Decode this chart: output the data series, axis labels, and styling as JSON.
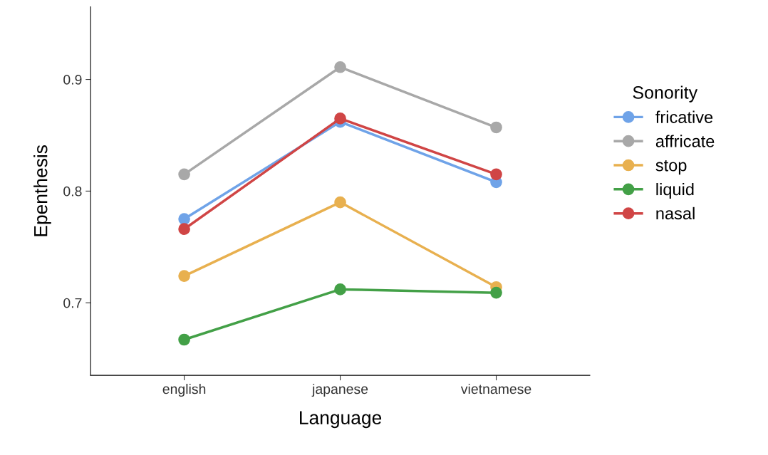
{
  "chart_data": {
    "type": "line",
    "xlabel": "Language",
    "ylabel": "Epenthesis",
    "legend_title": "Sonority",
    "categories": [
      "english",
      "japanese",
      "vietnamese"
    ],
    "series": [
      {
        "name": "fricative",
        "color": "#6fa3e8",
        "values": [
          0.775,
          0.862,
          0.808
        ]
      },
      {
        "name": "affricate",
        "color": "#a8a8a8",
        "values": [
          0.815,
          0.911,
          0.857
        ]
      },
      {
        "name": "stop",
        "color": "#e8b04f",
        "values": [
          0.724,
          0.79,
          0.714
        ]
      },
      {
        "name": "liquid",
        "color": "#43a047",
        "values": [
          0.667,
          0.712,
          0.709
        ]
      },
      {
        "name": "nasal",
        "color": "#d04545",
        "values": [
          0.766,
          0.865,
          0.815
        ]
      }
    ],
    "ylim": [
      0.635,
      0.965
    ],
    "yticks": [
      {
        "value": 0.7,
        "label": "0.7"
      },
      {
        "value": 0.8,
        "label": "0.8"
      },
      {
        "value": 0.9,
        "label": "0.9"
      }
    ],
    "grid": false,
    "legend": "right",
    "marker": "circle",
    "line_style": "solid"
  }
}
